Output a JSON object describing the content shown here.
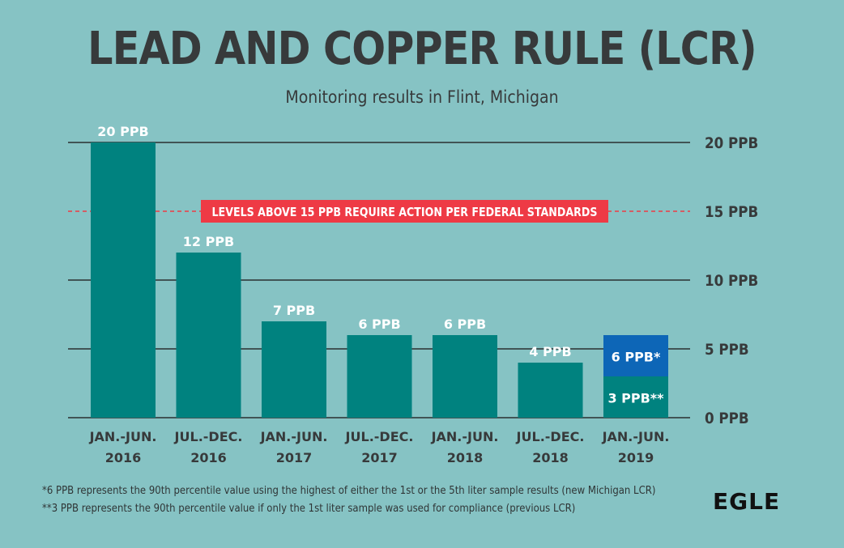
{
  "chart_data": {
    "type": "bar",
    "title": "LEAD AND COPPER RULE (LCR)",
    "subtitle": "Monitoring results in Flint, Michigan",
    "categories": [
      [
        "JAN.-JUN.",
        "2016"
      ],
      [
        "JUL.-DEC.",
        "2016"
      ],
      [
        "JAN.-JUN.",
        "2017"
      ],
      [
        "JUL.-DEC.",
        "2017"
      ],
      [
        "JAN.-JUN.",
        "2018"
      ],
      [
        "JUL.-DEC.",
        "2018"
      ],
      [
        "JAN.-JUN.",
        "2019"
      ]
    ],
    "values": [
      20,
      12,
      7,
      6,
      6,
      4,
      6
    ],
    "value_labels": [
      "20 PPB",
      "12 PPB",
      "7 PPB",
      "6 PPB",
      "6 PPB",
      "4 PPB",
      "6 PPB*"
    ],
    "secondary": {
      "category_index": 6,
      "value": 3,
      "label": "3 PPB**"
    },
    "yticks": [
      0,
      5,
      10,
      15,
      20
    ],
    "ytick_labels": [
      "0 PPB",
      "5 PPB",
      "10 PPB",
      "15 PPB",
      "20 PPB"
    ],
    "ylim": [
      0,
      20
    ],
    "threshold": {
      "value": 15,
      "label": "LEVELS ABOVE 15 PPB REQUIRE ACTION PER FEDERAL STANDARDS"
    },
    "colors": {
      "bar": "#00827f",
      "highlight": "#0d66b7",
      "threshold": "#ee3a45",
      "grid": "#2a2f30",
      "label": "#ffffff",
      "axis_text": "#373a3b"
    }
  },
  "footnotes": [
    "*6 PPB represents the 90th percentile value using the highest of either the 1st or the 5th liter sample results (new Michigan LCR)",
    "**3 PPB represents the 90th percentile value if only the 1st liter sample was used for compliance (previous LCR)"
  ],
  "logo": "EGLE"
}
